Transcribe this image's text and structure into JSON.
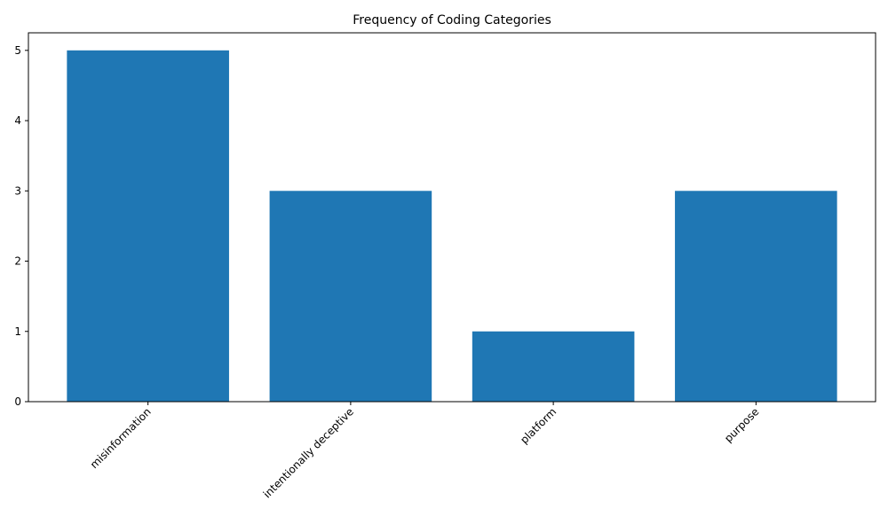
{
  "chart_data": {
    "type": "bar",
    "title": "Frequency of Coding Categories",
    "xlabel": "",
    "ylabel": "",
    "categories": [
      "misinformation",
      "intentionally deceptive",
      "platform",
      "purpose"
    ],
    "values": [
      5,
      3,
      1,
      3
    ],
    "ylim": [
      0,
      5.25
    ],
    "yticks": [
      0,
      1,
      2,
      3,
      4,
      5
    ],
    "bar_color": "#1f77b4",
    "grid": false,
    "legend": "none"
  }
}
